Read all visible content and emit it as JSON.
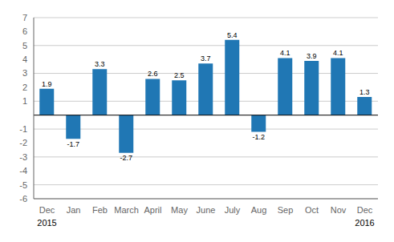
{
  "chart_data": {
    "type": "bar",
    "categories": [
      "Dec",
      "Jan",
      "Feb",
      "March",
      "April",
      "May",
      "June",
      "July",
      "Aug",
      "Sep",
      "Oct",
      "Nov",
      "Dec"
    ],
    "values": [
      1.9,
      -1.7,
      3.3,
      -2.7,
      2.6,
      2.5,
      3.7,
      5.4,
      -1.2,
      4.1,
      3.9,
      4.1,
      1.3
    ],
    "color": "#2077b4",
    "ylim": [
      -6,
      7
    ],
    "yticks": [
      -6,
      -5,
      -4,
      -3,
      -2,
      -1,
      1,
      2,
      3,
      4,
      5,
      6,
      7
    ],
    "grid": true,
    "data_labels": true,
    "annotations": [
      {
        "text": "2015",
        "x": 0
      },
      {
        "text": "2016",
        "x": 12
      }
    ]
  }
}
